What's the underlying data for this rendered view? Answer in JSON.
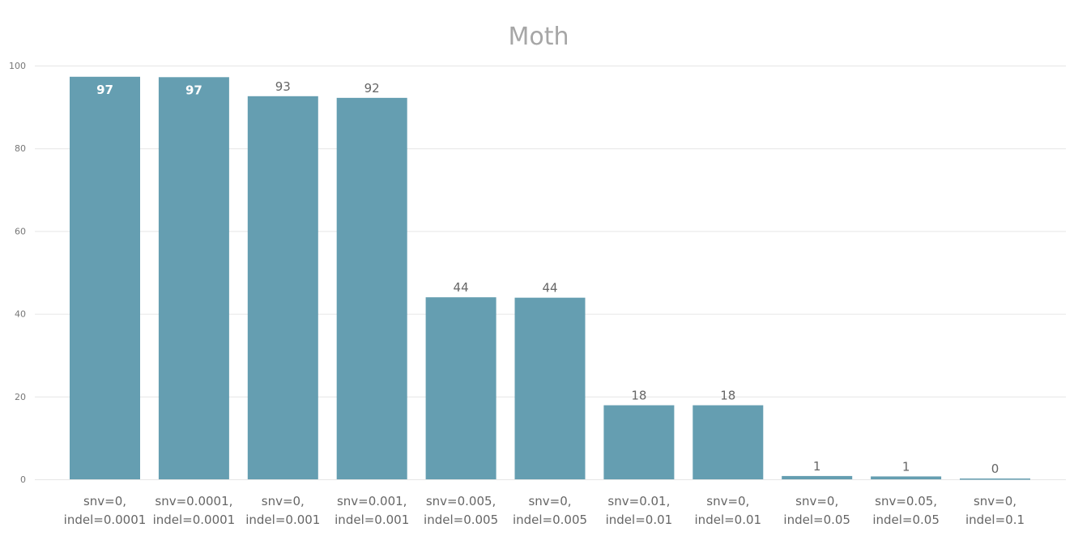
{
  "chart_data": {
    "type": "bar",
    "title": "Moth",
    "xlabel": "",
    "ylabel": "",
    "ylim": [
      0,
      100
    ],
    "yticks": [
      0,
      20,
      40,
      60,
      80,
      100
    ],
    "grid": true,
    "bar_color": "#659eb1",
    "categories": [
      [
        "snv=0,",
        "indel=0.0001"
      ],
      [
        "snv=0.0001,",
        "indel=0.0001"
      ],
      [
        "snv=0,",
        "indel=0.001"
      ],
      [
        "snv=0.001,",
        "indel=0.001"
      ],
      [
        "snv=0.005,",
        "indel=0.005"
      ],
      [
        "snv=0,",
        "indel=0.005"
      ],
      [
        "snv=0.01,",
        "indel=0.01"
      ],
      [
        "snv=0,",
        "indel=0.01"
      ],
      [
        "snv=0,",
        "indel=0.05"
      ],
      [
        "snv=0.05,",
        "indel=0.05"
      ],
      [
        "snv=0,",
        "indel=0.1"
      ]
    ],
    "values": [
      97.3,
      97.2,
      92.6,
      92.2,
      44.0,
      43.9,
      17.9,
      17.9,
      0.8,
      0.7,
      0.2
    ],
    "labels": [
      "97",
      "97",
      "93",
      "92",
      "44",
      "44",
      "18",
      "18",
      "1",
      "1",
      "0"
    ]
  }
}
